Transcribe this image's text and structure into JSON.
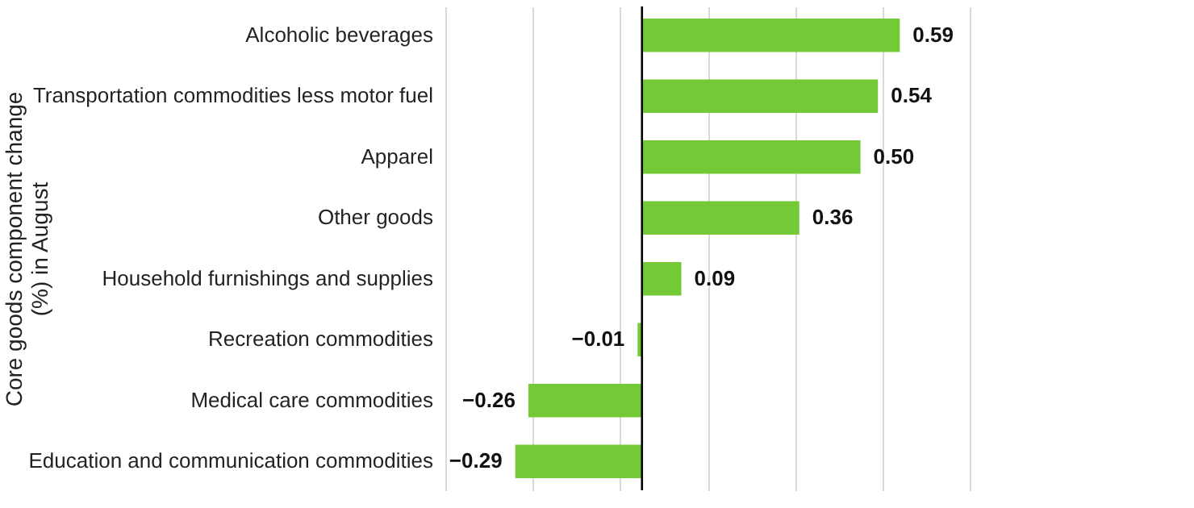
{
  "chart_data": {
    "type": "bar",
    "orientation": "horizontal",
    "ylabel": "Core goods component change (%) in August",
    "categories": [
      "Alcoholic beverages",
      "Transportation commodities less motor fuel",
      "Apparel",
      "Other goods",
      "Household furnishings and supplies",
      "Recreation commodities",
      "Medical care commodities",
      "Education and communication commodities"
    ],
    "values": [
      0.59,
      0.54,
      0.5,
      0.36,
      0.09,
      -0.01,
      -0.26,
      -0.29
    ],
    "color": "#74c936",
    "value_labels": [
      "0.59",
      "0.54",
      "0.50",
      "0.36",
      "0.09",
      "−0.01",
      "−0.26",
      "−0.29"
    ],
    "grid": "x",
    "tick_labels": "y",
    "xlim": [
      -0.45,
      0.75
    ],
    "xticks": [
      {
        "value": -0.45,
        "label": null
      },
      {
        "value": -0.25,
        "label": null
      },
      {
        "value": -0.05,
        "label": null
      },
      {
        "value": 0.15,
        "label": null
      },
      {
        "value": 0.35,
        "label": null
      },
      {
        "value": 0.55,
        "label": null
      },
      {
        "value": 0.75,
        "label": null
      }
    ],
    "ref_lines": [
      {
        "axis": "x",
        "value": 0,
        "label": null,
        "color": "#000000"
      }
    ]
  }
}
